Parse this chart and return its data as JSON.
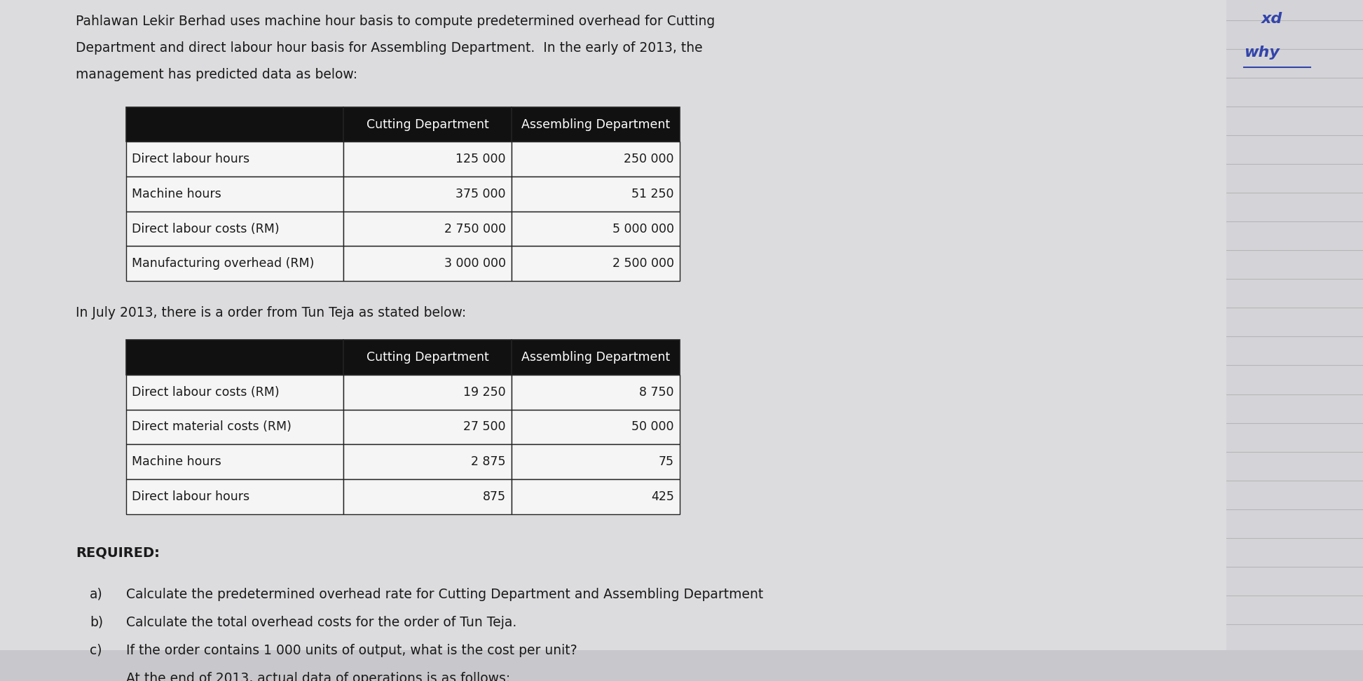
{
  "bg_color": "#c8c8cc",
  "paper_color": "#e0e0e4",
  "intro_text_line1": "Pahlawan Lekir Berhad uses machine hour basis to compute predetermined overhead for Cutting",
  "intro_text_line2": "Department and direct labour hour basis for Assembling Department.  In the early of 2013, the",
  "intro_text_line3": "management has predicted data as below:",
  "table1_header": [
    "",
    "Cutting Department",
    "Assembling Department"
  ],
  "table1_rows": [
    [
      "Direct labour hours",
      "125 000",
      "250 000"
    ],
    [
      "Machine hours",
      "375 000",
      "51 250"
    ],
    [
      "Direct labour costs (RM)",
      "2 750 000",
      "5 000 000"
    ],
    [
      "Manufacturing overhead (RM)",
      "3 000 000",
      "2 500 000"
    ]
  ],
  "mid_text": "In July 2013, there is a order from Tun Teja as stated below:",
  "table2_header": [
    "",
    "Cutting Department",
    "Assembling Department"
  ],
  "table2_rows": [
    [
      "Direct labour costs (RM)",
      "19 250",
      "8 750"
    ],
    [
      "Direct material costs (RM)",
      "27 500",
      "50 000"
    ],
    [
      "Machine hours",
      "2 875",
      "75"
    ],
    [
      "Direct labour hours",
      "875",
      "425"
    ]
  ],
  "required_label": "REQUIRED:",
  "req_a_label": "a)",
  "req_a_text": "Calculate the predetermined overhead rate for Cutting Department and Assembling Department",
  "req_b_label": "b)",
  "req_b_text": "Calculate the total overhead costs for the order of Tun Teja.",
  "req_c_label": "c)",
  "req_c_text": "If the order contains 1 000 units of output, what is the cost per unit?",
  "req_d_text": "At the end of 2013, actual data of operations is as follows:",
  "annot1": "xd",
  "annot2": "why",
  "header_bg": "#111111",
  "header_fg": "#ffffff",
  "cell_bg": "#f5f5f5",
  "border_color": "#222222",
  "text_color": "#1a1a1a",
  "annot_color": "#3344aa",
  "lined_color": "#aaaaaa",
  "font_size_intro": 13.5,
  "font_size_table": 12.5,
  "font_size_mid": 13.5,
  "font_size_req_label": 14,
  "font_size_req_items": 13.5,
  "font_size_annot": 16
}
